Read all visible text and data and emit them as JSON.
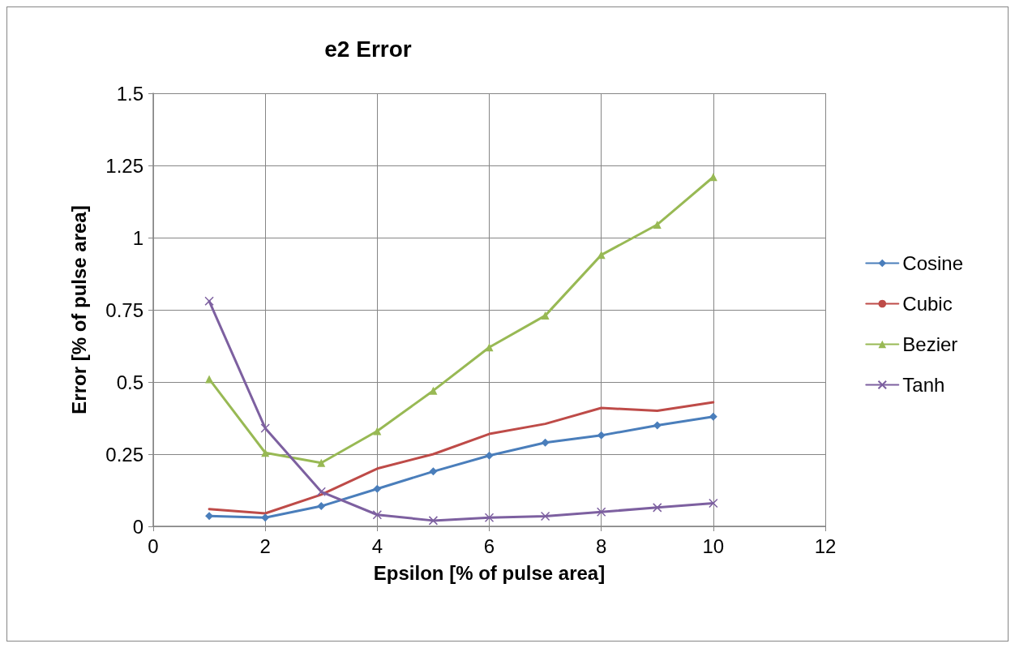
{
  "chart_data": {
    "type": "line",
    "title": "e2 Error",
    "xlabel": "Epsilon [% of pulse area]",
    "ylabel": "Error [% of pulse area]",
    "x": [
      1,
      2,
      3,
      4,
      5,
      6,
      7,
      8,
      9,
      10
    ],
    "series": [
      {
        "name": "Cosine",
        "color": "#4a7ebb",
        "marker": "diamond",
        "values": [
          0.036,
          0.03,
          0.07,
          0.13,
          0.19,
          0.245,
          0.29,
          0.315,
          0.35,
          0.38
        ]
      },
      {
        "name": "Cubic",
        "color": "#be4b48",
        "marker": "none",
        "values": [
          0.06,
          0.045,
          0.11,
          0.2,
          0.25,
          0.32,
          0.355,
          0.41,
          0.4,
          0.43
        ]
      },
      {
        "name": "Bezier",
        "color": "#98b954",
        "marker": "triangle",
        "values": [
          0.51,
          0.255,
          0.22,
          0.33,
          0.47,
          0.62,
          0.73,
          0.94,
          1.045,
          1.21
        ]
      },
      {
        "name": "Tanh",
        "color": "#7d60a0",
        "marker": "cross",
        "values": [
          0.78,
          0.34,
          0.12,
          0.04,
          0.02,
          0.03,
          0.035,
          0.05,
          0.065,
          0.08
        ]
      }
    ],
    "xlim": [
      0,
      12
    ],
    "xticks": [
      0,
      2,
      4,
      6,
      8,
      10,
      12
    ],
    "ylim": [
      0,
      1.5
    ],
    "yticks": [
      0,
      0.25,
      0.5,
      0.75,
      1,
      1.25,
      1.5
    ],
    "grid": true,
    "legend": "right"
  }
}
